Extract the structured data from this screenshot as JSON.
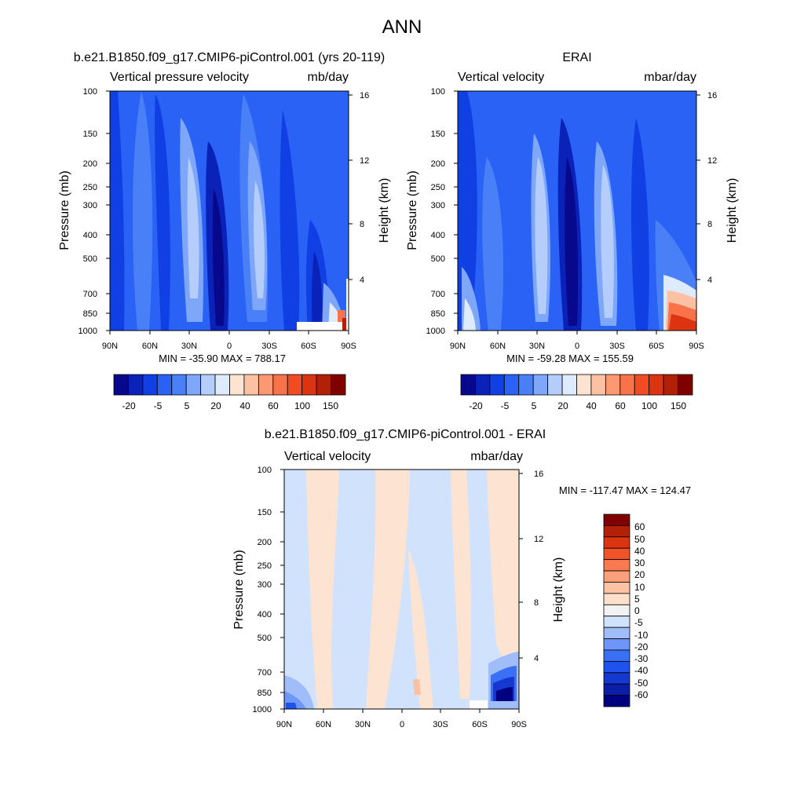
{
  "figure": {
    "title": "ANN"
  },
  "colors": {
    "ramp12": [
      "#08088c",
      "#0a22b8",
      "#1040e4",
      "#2a62f5",
      "#4a80f7",
      "#7ea6f9",
      "#b4cdfb",
      "#ddebfc",
      "#fde4d2",
      "#fcc0a2",
      "#fb9a72",
      "#f8724a",
      "#f04b22",
      "#dc3410",
      "#b22008",
      "#800000"
    ],
    "diffRamp": [
      "#000080",
      "#0a1ea8",
      "#1438d0",
      "#2052ee",
      "#3a70f5",
      "#6e96f8",
      "#a0bdfa",
      "#d0e2fc",
      "#f2f2f2",
      "#fde0cc",
      "#fcc2a4",
      "#fba07a",
      "#f97a50",
      "#f05428",
      "#dc3410",
      "#b22008",
      "#800000"
    ]
  },
  "chart_data": [
    {
      "type": "heatmap",
      "id": "panel1",
      "title": "b.e21.B1850.f09_g17.CMIP6-piControl.001 (yrs 20-119)",
      "left_label": "Vertical pressure velocity",
      "right_label": "mb/day",
      "ylabel": "Pressure (mb)",
      "ylabel_right": "Height (km)",
      "x_ticks": [
        "90N",
        "60N",
        "30N",
        "0",
        "30S",
        "60S",
        "90S"
      ],
      "y_ticks": [
        "100",
        "150",
        "200",
        "250",
        "300",
        "400",
        "500",
        "700",
        "850",
        "1000"
      ],
      "y_ticks_right": [
        "16",
        "12",
        "8",
        "4"
      ],
      "y_scale": "log",
      "ylim": [
        1000,
        100
      ],
      "xlim": [
        90,
        -90
      ],
      "min_max": "MIN = -35.90  MAX = 788.17",
      "colorbar_labels": [
        "-20",
        "-5",
        "5",
        "20",
        "40",
        "60",
        "100",
        "150"
      ],
      "colorbar_orientation": "horizontal"
    },
    {
      "type": "heatmap",
      "id": "panel2",
      "title": "ERAI",
      "left_label": "Vertical velocity",
      "right_label": "mbar/day",
      "ylabel": "Pressure (mb)",
      "ylabel_right": "Height (km)",
      "x_ticks": [
        "90N",
        "60N",
        "30N",
        "0",
        "30S",
        "60S",
        "90S"
      ],
      "y_ticks": [
        "100",
        "150",
        "200",
        "250",
        "300",
        "400",
        "500",
        "700",
        "850",
        "1000"
      ],
      "y_ticks_right": [
        "16",
        "12",
        "8",
        "4"
      ],
      "y_scale": "log",
      "ylim": [
        1000,
        100
      ],
      "xlim": [
        90,
        -90
      ],
      "min_max": "MIN = -59.28  MAX = 155.59",
      "colorbar_labels": [
        "-20",
        "-5",
        "5",
        "20",
        "40",
        "60",
        "100",
        "150"
      ],
      "colorbar_orientation": "horizontal"
    },
    {
      "type": "heatmap",
      "id": "panel3",
      "title": "b.e21.B1850.f09_g17.CMIP6-piControl.001 - ERAI",
      "left_label": "Vertical velocity",
      "right_label": "mbar/day",
      "ylabel": "Pressure (mb)",
      "ylabel_right": "Height (km)",
      "x_ticks": [
        "90N",
        "60N",
        "30N",
        "0",
        "30S",
        "60S",
        "90S"
      ],
      "y_ticks": [
        "100",
        "150",
        "200",
        "250",
        "300",
        "400",
        "500",
        "700",
        "850",
        "1000"
      ],
      "y_ticks_right": [
        "16",
        "12",
        "8",
        "4"
      ],
      "y_scale": "log",
      "ylim": [
        1000,
        100
      ],
      "xlim": [
        90,
        -90
      ],
      "min_max": "MIN = -117.47  MAX = 124.47",
      "colorbar_labels": [
        "60",
        "50",
        "40",
        "30",
        "20",
        "10",
        "5",
        "0",
        "-5",
        "-10",
        "-20",
        "-30",
        "-40",
        "-50",
        "-60"
      ],
      "colorbar_orientation": "vertical"
    }
  ]
}
